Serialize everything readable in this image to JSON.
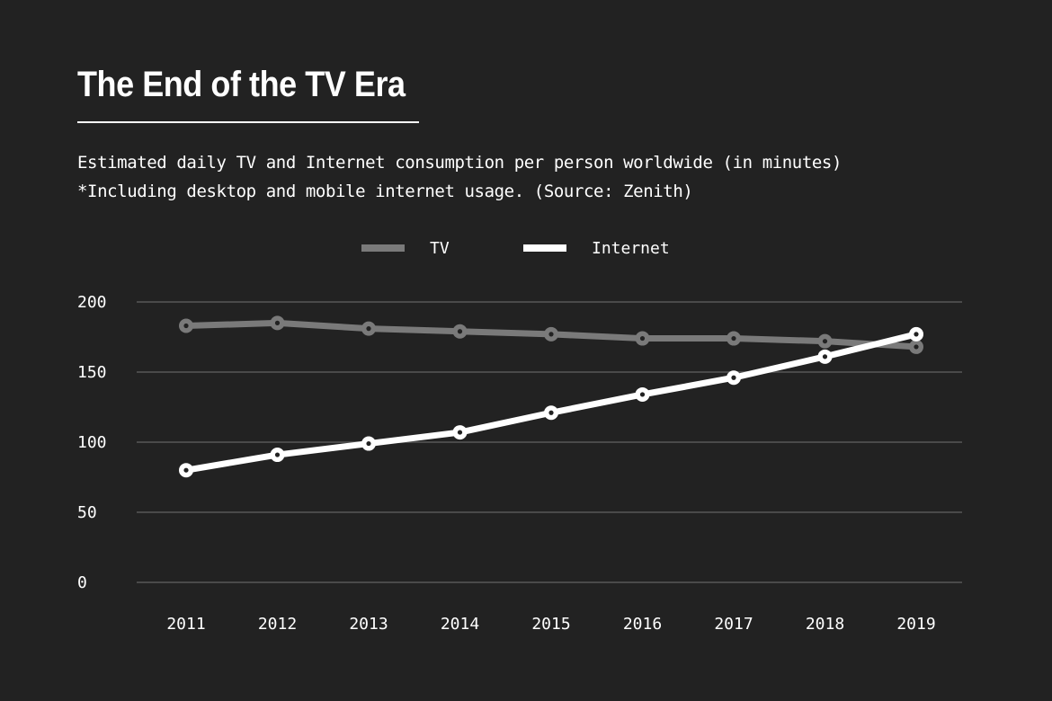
{
  "header": {
    "title": "The End of the TV Era",
    "subtitle_line1": "Estimated daily TV and Internet consumption per person worldwide (in minutes)",
    "subtitle_line2": "*Including desktop and mobile internet usage. (Source: Zenith)"
  },
  "colors": {
    "background": "#222222",
    "tv": "#7a7a7a",
    "internet": "#ffffff",
    "grid": "#4a4a4a"
  },
  "chart_data": {
    "type": "line",
    "title": "The End of the TV Era",
    "subtitle": "Estimated daily TV and Internet consumption per person worldwide (in minutes)",
    "note": "*Including desktop and mobile internet usage. (Source: Zenith)",
    "x": [
      "2011",
      "2012",
      "2013",
      "2014",
      "2015",
      "2016",
      "2017",
      "2018",
      "2019"
    ],
    "series": [
      {
        "name": "TV",
        "values": [
          183,
          185,
          181,
          179,
          177,
          174,
          174,
          172,
          168
        ]
      },
      {
        "name": "Internet",
        "values": [
          80,
          91,
          99,
          107,
          121,
          134,
          146,
          161,
          177
        ]
      }
    ],
    "ylim": [
      0,
      200
    ],
    "yticks": [
      0,
      50,
      100,
      150,
      200
    ],
    "grid": true,
    "legend": "top-center",
    "xlabel": "",
    "ylabel": ""
  }
}
